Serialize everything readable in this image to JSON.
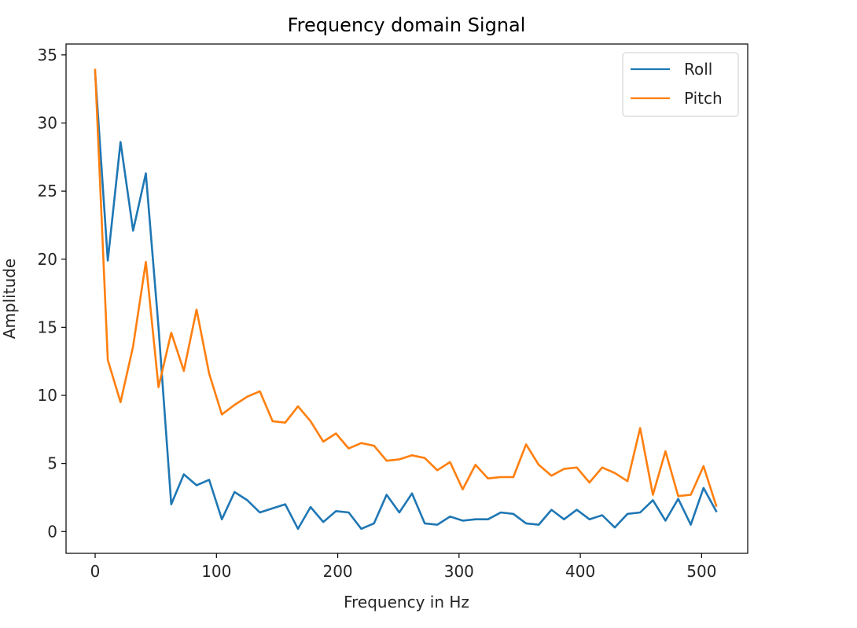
{
  "chart_data": {
    "type": "line",
    "title": "Frequency domain Signal",
    "xlabel": "Frequency in Hz",
    "ylabel": "Amplitude",
    "xlim": [
      -24,
      538
    ],
    "ylim": [
      -1.6,
      35.8
    ],
    "xticks": [
      0,
      100,
      200,
      300,
      400,
      500
    ],
    "yticks": [
      0,
      5,
      10,
      15,
      20,
      25,
      30,
      35
    ],
    "grid": false,
    "legend_position": "top-right",
    "x": [
      0,
      10.4,
      20.9,
      31.3,
      41.8,
      52.2,
      62.7,
      73.1,
      83.6,
      94.0,
      104.5,
      114.9,
      125.4,
      135.8,
      146.3,
      156.7,
      167.2,
      177.6,
      188.1,
      198.5,
      209.0,
      219.4,
      229.9,
      240.3,
      250.8,
      261.2,
      271.7,
      282.1,
      292.6,
      303.0,
      313.5,
      323.9,
      334.4,
      344.8,
      355.3,
      365.7,
      376.2,
      386.6,
      397.1,
      407.5,
      418.0,
      428.4,
      438.9,
      449.3,
      459.8,
      470.2,
      480.7,
      491.1,
      501.6,
      512.0
    ],
    "series": [
      {
        "name": "Roll",
        "color": "#1f77b4",
        "values": [
          33.7,
          19.9,
          28.6,
          22.1,
          26.3,
          15.0,
          2.0,
          4.2,
          3.4,
          3.8,
          0.9,
          2.9,
          2.3,
          1.4,
          1.7,
          2.0,
          0.2,
          1.8,
          0.7,
          1.5,
          1.4,
          0.2,
          0.6,
          2.7,
          1.4,
          2.8,
          0.6,
          0.5,
          1.1,
          0.8,
          0.9,
          0.9,
          1.4,
          1.3,
          0.6,
          0.5,
          1.6,
          0.9,
          1.6,
          0.9,
          1.2,
          0.3,
          1.3,
          1.4,
          2.3,
          0.8,
          2.4,
          0.5,
          3.2,
          1.5
        ]
      },
      {
        "name": "Pitch",
        "color": "#ff7f0e",
        "values": [
          33.9,
          12.6,
          9.5,
          13.6,
          19.8,
          10.6,
          14.6,
          11.8,
          16.3,
          11.6,
          8.6,
          9.3,
          9.9,
          10.3,
          8.1,
          8.0,
          9.2,
          8.1,
          6.6,
          7.2,
          6.1,
          6.5,
          6.3,
          5.2,
          5.3,
          5.6,
          5.4,
          4.5,
          5.1,
          3.1,
          4.9,
          3.9,
          4.0,
          4.0,
          6.4,
          4.9,
          4.1,
          4.6,
          4.7,
          3.6,
          4.7,
          4.3,
          3.7,
          7.6,
          2.7,
          5.9,
          2.6,
          2.7,
          4.8,
          1.9
        ]
      }
    ]
  }
}
